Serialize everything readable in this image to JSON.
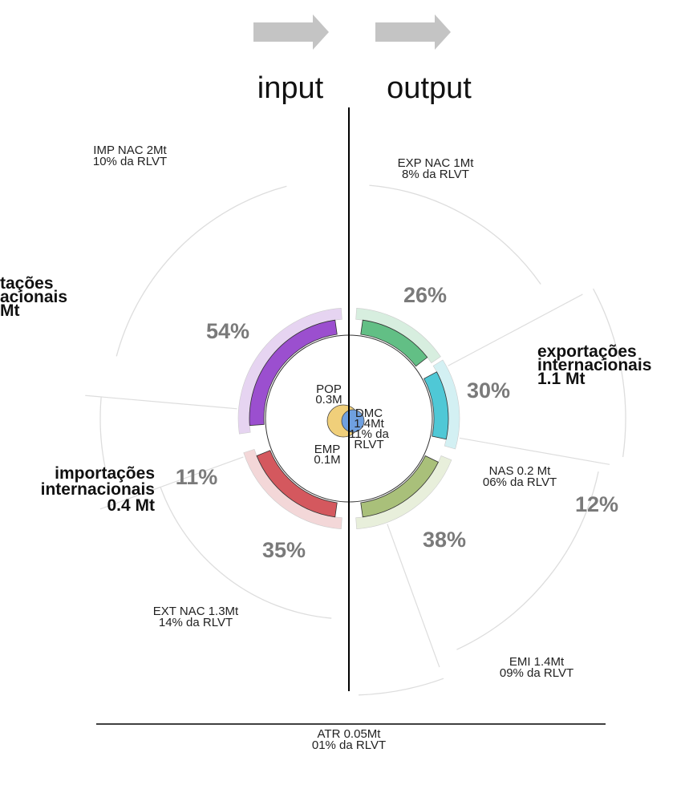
{
  "header": {
    "input": "input",
    "output": "output"
  },
  "flows": {
    "imp_nac": [
      "IMP NAC 2Mt",
      "10% da RLVT"
    ],
    "exp_nac": [
      "EXP NAC 1Mt",
      "8% da RLVT"
    ],
    "imp_nac_big": [
      "tações",
      "acionais",
      "Mt"
    ],
    "exp_int": [
      "exportações",
      "internacionais",
      "1.1 Mt"
    ],
    "imp_int": [
      "importações",
      "internacionais",
      "0.4 Mt"
    ],
    "nas": [
      "NAS 0.2 Mt",
      "06% da RLVT"
    ],
    "ext_nac": [
      "EXT NAC 1.3Mt",
      "14% da RLVT"
    ],
    "emi": [
      "EMI 1.4Mt",
      "09% da RLVT"
    ],
    "atr": [
      "ATR 0.05Mt",
      "01% da RLVT"
    ]
  },
  "center": {
    "pop": [
      "POP",
      "0.3M"
    ],
    "emp": [
      "EMP",
      "0.1M"
    ],
    "dmc": [
      "DMC",
      "1.4Mt",
      "11% da",
      "RLVT"
    ]
  },
  "percentages": [
    "26%",
    "54%",
    "30%",
    "11%",
    "12%",
    "35%",
    "38%"
  ]
}
